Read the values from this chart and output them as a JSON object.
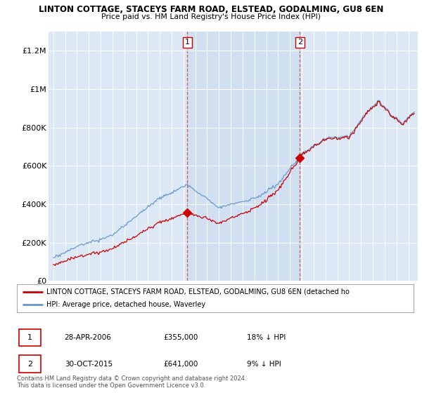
{
  "title1": "LINTON COTTAGE, STACEYS FARM ROAD, ELSTEAD, GODALMING, GU8 6EN",
  "title2": "Price paid vs. HM Land Registry's House Price Index (HPI)",
  "ylim": [
    0,
    1300000
  ],
  "yticks": [
    0,
    200000,
    400000,
    600000,
    800000,
    1000000,
    1200000
  ],
  "ytick_labels": [
    "£0",
    "£200K",
    "£400K",
    "£600K",
    "£800K",
    "£1M",
    "£1.2M"
  ],
  "background_color": "#dce8f5",
  "grid_color": "#c0d0e0",
  "red_line_color": "#cc0000",
  "blue_line_color": "#6699cc",
  "shade_color": "#c8daf0",
  "sale1_price": 355000,
  "sale2_price": 641000,
  "legend_red": "LINTON COTTAGE, STACEYS FARM ROAD, ELSTEAD, GODALMING, GU8 6EN (detached ho",
  "legend_blue": "HPI: Average price, detached house, Waverley",
  "footer1": "Contains HM Land Registry data © Crown copyright and database right 2024.",
  "footer2": "This data is licensed under the Open Government Licence v3.0.",
  "annotation1_date": "28-APR-2006",
  "annotation1_price": "£355,000",
  "annotation1_hpi": "18% ↓ HPI",
  "annotation2_date": "30-OCT-2015",
  "annotation2_price": "£641,000",
  "annotation2_hpi": "9% ↓ HPI"
}
